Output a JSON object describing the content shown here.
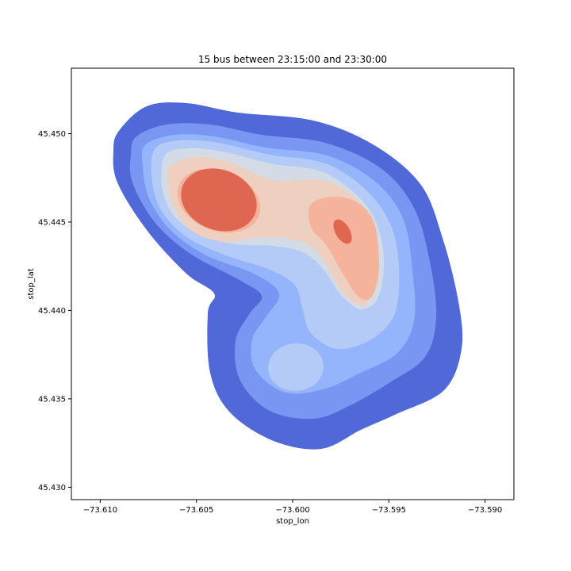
{
  "chart_data": {
    "type": "kde-contour",
    "title": "15 bus between 23:15:00 and 23:30:00",
    "xlabel": "stop_lon",
    "ylabel": "stop_lat",
    "xlim": [
      -73.6115,
      -73.5885
    ],
    "ylim": [
      45.4293,
      45.4537
    ],
    "x_ticks": [
      -73.61,
      -73.605,
      -73.6,
      -73.595,
      -73.59
    ],
    "x_tick_labels": [
      "−73.610",
      "−73.605",
      "−73.600",
      "−73.595",
      "−73.590"
    ],
    "y_ticks": [
      45.43,
      45.435,
      45.44,
      45.445,
      45.45
    ],
    "y_tick_labels": [
      "45.430",
      "45.435",
      "45.440",
      "45.445",
      "45.450"
    ],
    "grid": false,
    "colormap": "coolwarm",
    "density_levels": [
      {
        "level": 1,
        "color": "#5068d8"
      },
      {
        "level": 2,
        "color": "#7896f2"
      },
      {
        "level": 3,
        "color": "#94b4fb"
      },
      {
        "level": 4,
        "color": "#b4cbf8"
      },
      {
        "level": 5,
        "color": "#d3dbe6"
      },
      {
        "level": 6,
        "color": "#efcfbf"
      },
      {
        "level": 7,
        "color": "#f4b39a"
      },
      {
        "level": 8,
        "color": "#df6751"
      }
    ],
    "density_peaks": [
      {
        "x": -73.6037,
        "y": 45.4461,
        "rank": 1
      },
      {
        "x": -73.5975,
        "y": 45.4447,
        "rank": 2
      },
      {
        "x": -73.5993,
        "y": 45.4372,
        "rank": 3
      }
    ]
  }
}
